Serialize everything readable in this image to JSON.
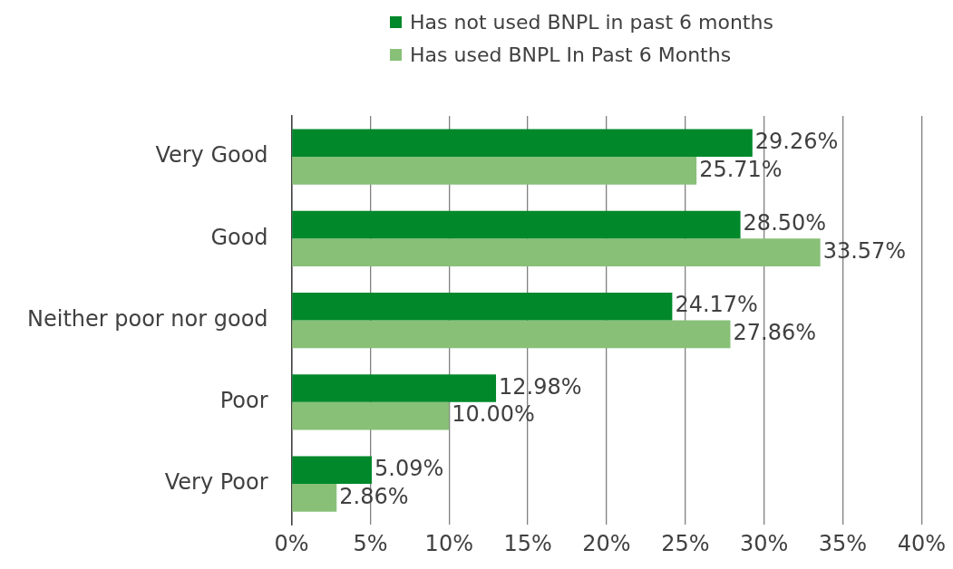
{
  "chart_data": {
    "type": "bar",
    "orientation": "horizontal",
    "categories": [
      "Very Good",
      "Good",
      "Neither poor nor good",
      "Poor",
      "Very Poor"
    ],
    "series": [
      {
        "name": "Has not used BNPL in past 6 months",
        "color": "#00882b",
        "values": [
          29.26,
          28.5,
          24.17,
          12.98,
          5.09
        ],
        "value_labels": [
          "29.26%",
          "28.50%",
          "24.17%",
          "12.98%",
          "5.09%"
        ]
      },
      {
        "name": "Has used BNPL In Past 6 Months",
        "color": "#88c078",
        "values": [
          25.71,
          33.57,
          27.86,
          10.0,
          2.86
        ],
        "value_labels": [
          "25.71%",
          "33.57%",
          "27.86%",
          "10.00%",
          "2.86%"
        ]
      }
    ],
    "xlim": [
      0,
      40
    ],
    "xticks": [
      {
        "value": 0,
        "label": "0%"
      },
      {
        "value": 5,
        "label": "5%"
      },
      {
        "value": 10,
        "label": "10%"
      },
      {
        "value": 15,
        "label": "15%"
      },
      {
        "value": 20,
        "label": "20%"
      },
      {
        "value": 25,
        "label": "25%"
      },
      {
        "value": 30,
        "label": "30%"
      },
      {
        "value": 35,
        "label": "35%"
      },
      {
        "value": 40,
        "label": "40%"
      }
    ],
    "grid": "x",
    "legend": "top"
  }
}
